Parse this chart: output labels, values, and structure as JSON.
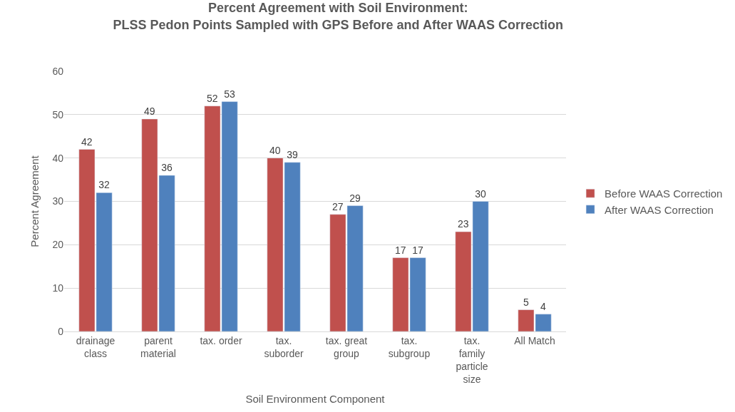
{
  "chart_data": {
    "type": "bar",
    "title": "Percent Agreement with Soil Environment:\nPLSS Pedon Points Sampled with GPS Before and After WAAS Correction",
    "xlabel": "Soil Environment Component",
    "ylabel": "Percent Agreement",
    "categories": [
      "drainage class",
      "parent material",
      "tax. order",
      "tax. suborder",
      "tax. great group",
      "tax. subgroup",
      "tax. family particle size",
      "All Match"
    ],
    "series": [
      {
        "name": "Before WAAS Correction",
        "color": "#c0504d",
        "values": [
          42,
          49,
          52,
          40,
          27,
          17,
          23,
          5
        ]
      },
      {
        "name": "After WAAS Correction",
        "color": "#4f81bd",
        "values": [
          32,
          36,
          53,
          39,
          29,
          17,
          30,
          4
        ]
      }
    ],
    "ylim": [
      0,
      60
    ],
    "yticks": [
      0,
      10,
      20,
      30,
      40,
      50,
      60
    ],
    "grid": "y",
    "legend": "right",
    "data_labels": true
  }
}
